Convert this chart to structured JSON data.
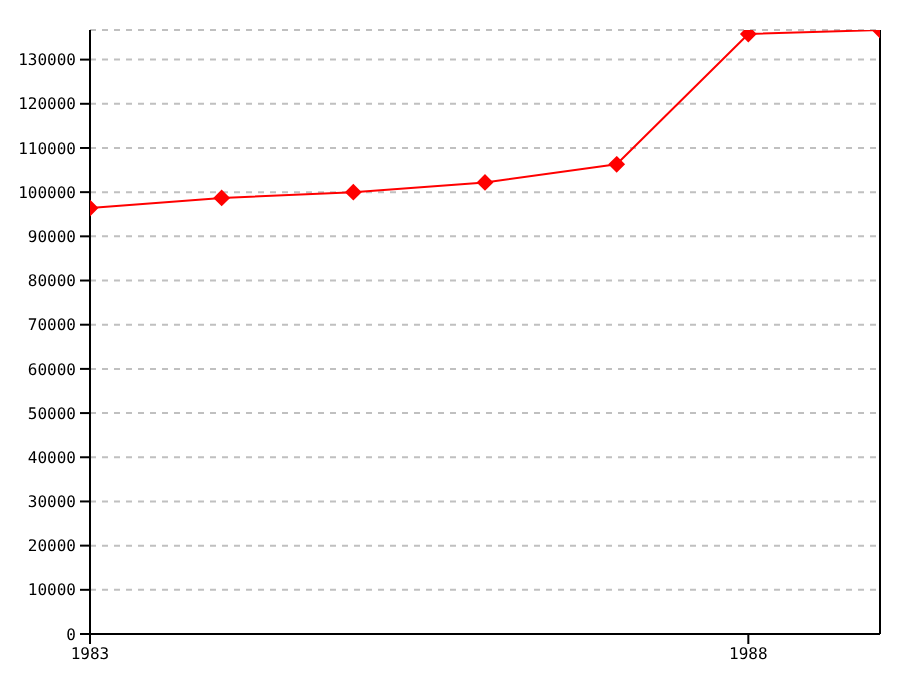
{
  "chart_data": {
    "type": "line",
    "x": [
      1983,
      1984,
      1985,
      1986,
      1987,
      1988,
      1989
    ],
    "series": [
      {
        "color": "#ff0000",
        "values": [
          96400,
          98700,
          100000,
          102200,
          106300,
          135800,
          136700
        ]
      }
    ],
    "xlim": [
      1983,
      1989
    ],
    "xticks": [
      1983,
      1988
    ],
    "ylim": [
      0,
      136700
    ],
    "yticks": [
      0,
      10000,
      20000,
      30000,
      40000,
      50000,
      60000,
      70000,
      80000,
      90000,
      100000,
      110000,
      120000,
      130000
    ],
    "grid": "y",
    "marker": "diamond",
    "line_style": "solid",
    "legend": false
  }
}
